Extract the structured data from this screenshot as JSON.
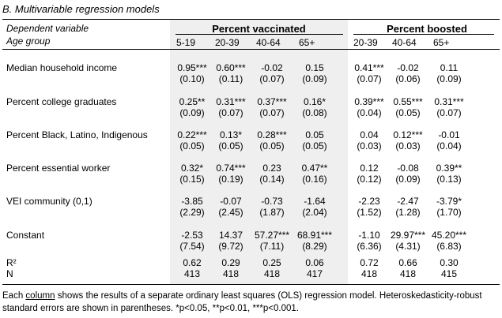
{
  "title": "B. Multivariable regression models",
  "header": {
    "dep_label": "Dependent variable",
    "age_label": "Age group",
    "group_vax": "Percent vaccinated",
    "group_boost": "Percent boosted",
    "ages": [
      "5-19",
      "20-39",
      "40-64",
      "65+",
      "20-39",
      "40-64",
      "65+"
    ]
  },
  "rows": [
    {
      "label": "Median household income",
      "coef": [
        "0.95***",
        "0.60***",
        "-0.02",
        "0.15",
        "0.41***",
        "-0.02",
        "0.11"
      ],
      "se": [
        "(0.10)",
        "(0.11)",
        "(0.07)",
        "(0.09)",
        "(0.07)",
        "(0.06)",
        "(0.09)"
      ]
    },
    {
      "label": "Percent college graduates",
      "coef": [
        "0.25**",
        "0.31***",
        "0.37***",
        "0.16*",
        "0.39***",
        "0.55***",
        "0.31***"
      ],
      "se": [
        "(0.09)",
        "(0.07)",
        "(0.07)",
        "(0.08)",
        "(0.04)",
        "(0.05)",
        "(0.07)"
      ]
    },
    {
      "label": "Percent Black, Latino, Indigenous",
      "coef": [
        "0.22***",
        "0.13*",
        "0.28***",
        "0.05",
        "0.04",
        "0.12***",
        "-0.01"
      ],
      "se": [
        "(0.05)",
        "(0.05)",
        "(0.05)",
        "(0.05)",
        "(0.03)",
        "(0.03)",
        "(0.04)"
      ]
    },
    {
      "label": "Percent essential worker",
      "coef": [
        "0.32*",
        "0.74***",
        "0.23",
        "0.47**",
        "0.12",
        "-0.08",
        "0.39**"
      ],
      "se": [
        "(0.15)",
        "(0.19)",
        "(0.14)",
        "(0.16)",
        "(0.12)",
        "(0.09)",
        "(0.13)"
      ]
    },
    {
      "label": "VEI community (0,1)",
      "coef": [
        "-3.85",
        "-0.07",
        "-0.73",
        "-1.64",
        "-2.23",
        "-2.47",
        "-3.79*"
      ],
      "se": [
        "(2.29)",
        "(2.45)",
        "(1.87)",
        "(2.04)",
        "(1.52)",
        "(1.28)",
        "(1.70)"
      ]
    },
    {
      "label": "Constant",
      "coef": [
        "-2.53",
        "14.37",
        "57.27***",
        "68.91***",
        "-1.10",
        "29.97***",
        "45.20***"
      ],
      "se": [
        "(7.54)",
        "(9.72)",
        "(7.11)",
        "(8.29)",
        "(6.36)",
        "(4.31)",
        "(6.83)"
      ]
    }
  ],
  "stats": {
    "r2_label": "R²",
    "n_label": "N",
    "r2": [
      "0.62",
      "0.29",
      "0.25",
      "0.06",
      "0.72",
      "0.66",
      "0.30"
    ],
    "n": [
      "413",
      "418",
      "418",
      "417",
      "418",
      "418",
      "415"
    ]
  },
  "note": {
    "before": "Each ",
    "underlined": "column",
    "after": " shows the results of a separate ordinary least squares (OLS) regression model. Heteroskedasticity-robust standard errors are shown in parentheses. *p<0.05, **p<0.01, ***p<0.001."
  }
}
